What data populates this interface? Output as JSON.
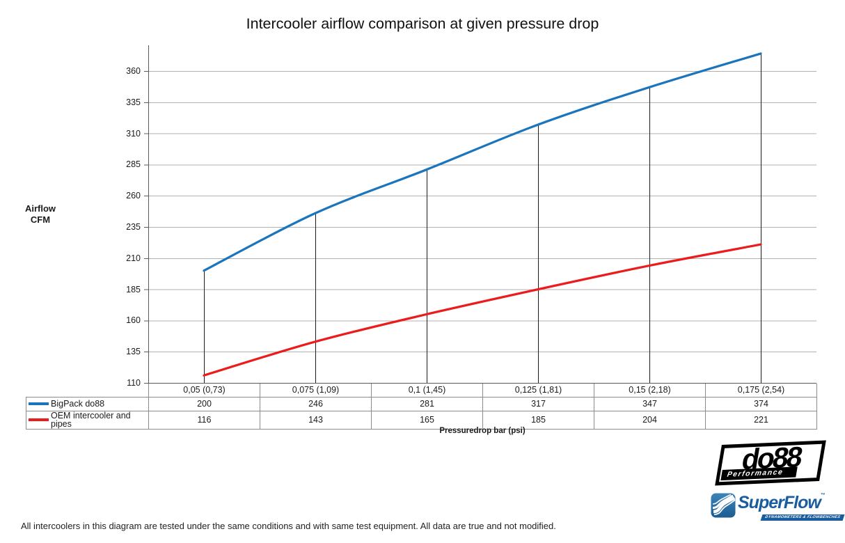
{
  "title": "Intercooler airflow comparison at given pressure drop",
  "y_axis": {
    "title_line1": "Airflow",
    "title_line2": "CFM"
  },
  "x_axis": {
    "title": "Pressuredrop bar (psi)"
  },
  "chart_data": {
    "type": "line",
    "title": "Intercooler airflow comparison at given pressure drop",
    "xlabel": "Pressuredrop bar (psi)",
    "ylabel": "Airflow CFM",
    "categories": [
      "0,05 (0,73)",
      "0,075 (1,09)",
      "0,1 (1,45)",
      "0,125 (1,81)",
      "0,15 (2,18)",
      "0,175 (2,54)"
    ],
    "series": [
      {
        "name": "BigPack do88",
        "color": "#1B75BC",
        "values": [
          200,
          246,
          281,
          317,
          347,
          374
        ]
      },
      {
        "name": "OEM intercooler and pipes",
        "color": "#EB1C1C",
        "values": [
          116,
          143,
          165,
          185,
          204,
          221
        ]
      }
    ],
    "yticks": [
      110,
      135,
      160,
      185,
      210,
      235,
      260,
      285,
      310,
      335,
      360
    ],
    "ylim": [
      110,
      380
    ],
    "grid": "horizontal",
    "smooth": true,
    "drop_lines": "vertical lines from each BigPack do88 point down to x-axis",
    "legend_position": "table-left"
  },
  "colors": {
    "axis": "#595959",
    "gridline": "#b0b0b0",
    "drop_line": "#1a1a1a",
    "table_border": "#8c8c8c",
    "superflow_blue": "#1a5d9e"
  },
  "footer": "All intercoolers in this diagram are tested under the same conditions and with same test equipment. All data are true and not modified.",
  "logos": {
    "do88": {
      "text": "do88",
      "tagline": "Performance"
    },
    "superflow": {
      "text": "SuperFlow",
      "tm": "™",
      "tagline": "DYNAMOMETERS & FLOWBENCHES"
    }
  }
}
